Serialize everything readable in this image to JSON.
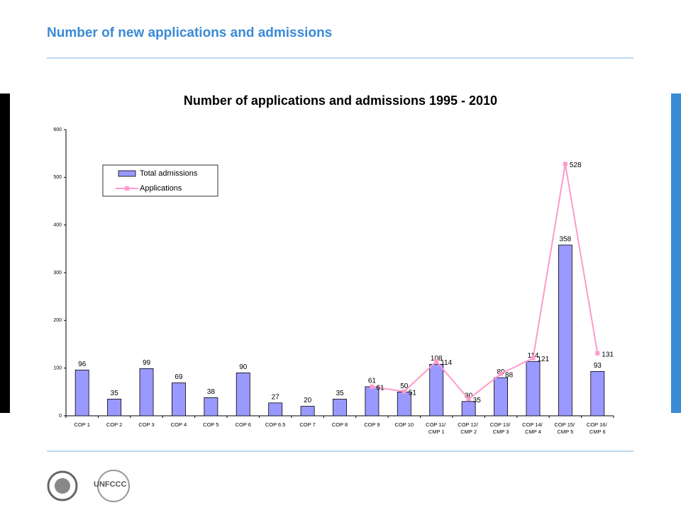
{
  "page": {
    "heading": "Number of new applications and admissions",
    "logo_text": "UNFCCC"
  },
  "chart_data": {
    "type": "bar",
    "title": "Number of applications and admissions 1995 - 2010",
    "categories": [
      "COP 1",
      "COP 2",
      "COP 3",
      "COP 4",
      "COP 5",
      "COP 6",
      "COP 6.5",
      "COP 7",
      "COP 8",
      "COP 9",
      "COP 10",
      "COP 11/ CMP 1",
      "COP 12/ CMP 2",
      "COP 13/ CMP 3",
      "COP 14/ CMP 4",
      "COP 15/ CMP 5",
      "COP 16/ CMP 6"
    ],
    "series": [
      {
        "name": "Total admissions",
        "type": "bar",
        "color": "#9999ff",
        "values": [
          96,
          35,
          99,
          69,
          38,
          90,
          27,
          20,
          35,
          61,
          50,
          108,
          30,
          80,
          114,
          358,
          93
        ]
      },
      {
        "name": "Applications",
        "type": "line",
        "color": "#ff99cc",
        "values": [
          null,
          null,
          null,
          null,
          null,
          null,
          null,
          null,
          null,
          61,
          51,
          114,
          35,
          88,
          121,
          528,
          131
        ]
      }
    ],
    "ylim": [
      0,
      600
    ],
    "yticks": [
      0,
      100,
      200,
      300,
      400,
      500,
      600
    ],
    "grid": false,
    "legend": "upper left"
  }
}
